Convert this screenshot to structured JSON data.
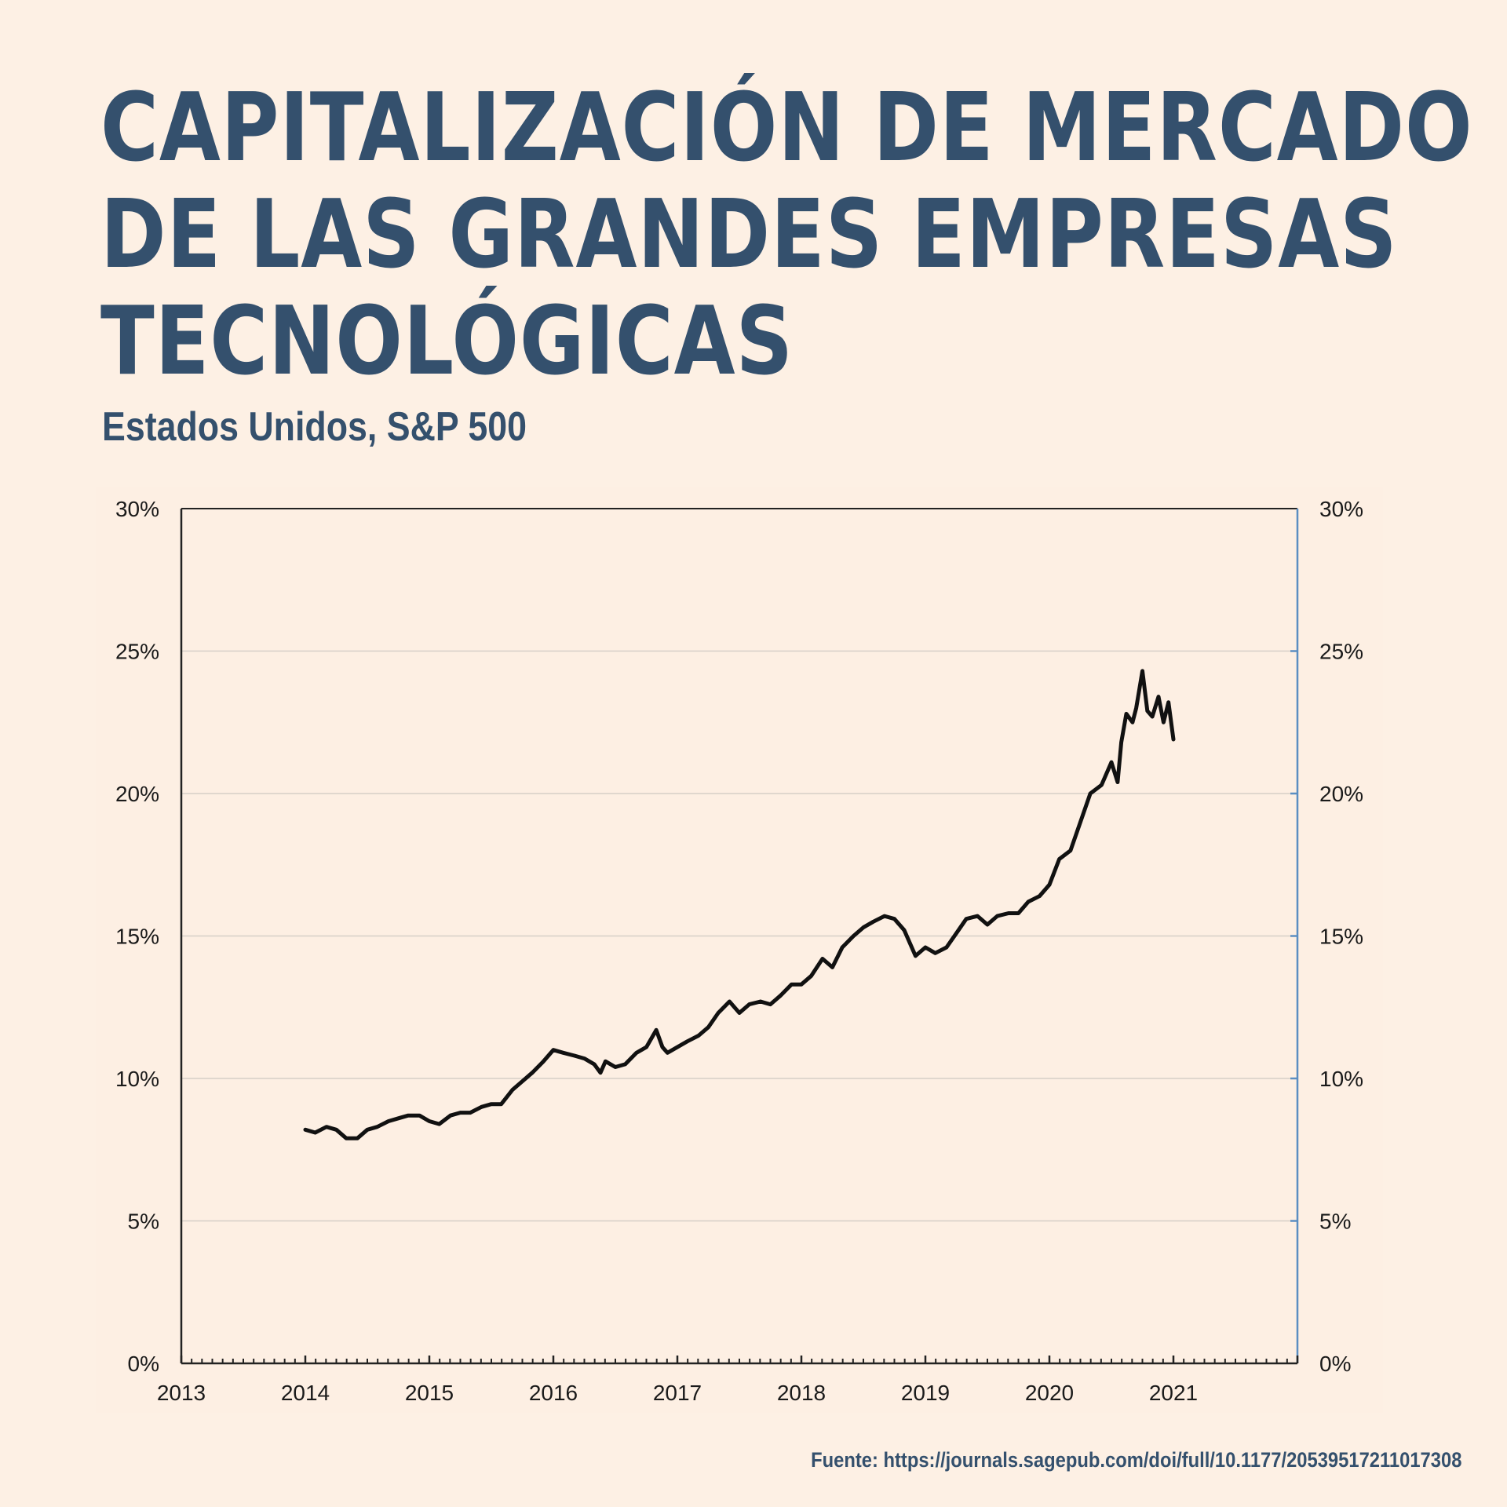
{
  "title_lines": [
    "CAPITALIZACIÓN DE MERCADO",
    "DE LAS GRANDES EMPRESAS",
    "TECNOLÓGICAS"
  ],
  "subtitle": "Estados Unidos, S&P 500",
  "source": "Fuente: https://journals.sagepub.com/doi/full/10.1177/20539517211017308",
  "colors": {
    "heading": "#34506d",
    "background": "#fdf0e4",
    "line": "#111111",
    "gridline": "#d6cfc8",
    "right_axis": "#5b8ec2"
  },
  "chart_data": {
    "type": "line",
    "title": "",
    "xlabel": "",
    "ylabel": "",
    "xlim": [
      2013,
      2022
    ],
    "ylim": [
      0,
      30
    ],
    "x_ticks": [
      "2013",
      "2014",
      "2015",
      "2016",
      "2017",
      "2018",
      "2019",
      "2020",
      "2021"
    ],
    "y_ticks": [
      "0%",
      "5%",
      "10%",
      "15%",
      "20%",
      "25%",
      "30%"
    ],
    "y_ticks_right": [
      "0%",
      "5%",
      "10%",
      "15%",
      "20%",
      "25%",
      "30%"
    ],
    "grid": true,
    "legend": "none",
    "series": [
      {
        "points": [
          [
            2014.0,
            8.2
          ],
          [
            2014.08,
            8.1
          ],
          [
            2014.17,
            8.3
          ],
          [
            2014.25,
            8.2
          ],
          [
            2014.33,
            7.9
          ],
          [
            2014.42,
            7.9
          ],
          [
            2014.5,
            8.2
          ],
          [
            2014.58,
            8.3
          ],
          [
            2014.67,
            8.5
          ],
          [
            2014.75,
            8.6
          ],
          [
            2014.83,
            8.7
          ],
          [
            2014.92,
            8.7
          ],
          [
            2015.0,
            8.5
          ],
          [
            2015.08,
            8.4
          ],
          [
            2015.17,
            8.7
          ],
          [
            2015.25,
            8.8
          ],
          [
            2015.33,
            8.8
          ],
          [
            2015.42,
            9.0
          ],
          [
            2015.5,
            9.1
          ],
          [
            2015.58,
            9.1
          ],
          [
            2015.67,
            9.6
          ],
          [
            2015.75,
            9.9
          ],
          [
            2015.83,
            10.2
          ],
          [
            2015.92,
            10.6
          ],
          [
            2016.0,
            11.0
          ],
          [
            2016.08,
            10.9
          ],
          [
            2016.17,
            10.8
          ],
          [
            2016.25,
            10.7
          ],
          [
            2016.33,
            10.5
          ],
          [
            2016.38,
            10.2
          ],
          [
            2016.42,
            10.6
          ],
          [
            2016.5,
            10.4
          ],
          [
            2016.58,
            10.5
          ],
          [
            2016.67,
            10.9
          ],
          [
            2016.75,
            11.1
          ],
          [
            2016.83,
            11.7
          ],
          [
            2016.88,
            11.1
          ],
          [
            2016.92,
            10.9
          ],
          [
            2017.0,
            11.1
          ],
          [
            2017.08,
            11.3
          ],
          [
            2017.17,
            11.5
          ],
          [
            2017.25,
            11.8
          ],
          [
            2017.33,
            12.3
          ],
          [
            2017.42,
            12.7
          ],
          [
            2017.5,
            12.3
          ],
          [
            2017.58,
            12.6
          ],
          [
            2017.67,
            12.7
          ],
          [
            2017.75,
            12.6
          ],
          [
            2017.83,
            12.9
          ],
          [
            2017.92,
            13.3
          ],
          [
            2018.0,
            13.3
          ],
          [
            2018.08,
            13.6
          ],
          [
            2018.17,
            14.2
          ],
          [
            2018.25,
            13.9
          ],
          [
            2018.33,
            14.6
          ],
          [
            2018.42,
            15.0
          ],
          [
            2018.5,
            15.3
          ],
          [
            2018.58,
            15.5
          ],
          [
            2018.67,
            15.7
          ],
          [
            2018.75,
            15.6
          ],
          [
            2018.83,
            15.2
          ],
          [
            2018.92,
            14.3
          ],
          [
            2019.0,
            14.6
          ],
          [
            2019.08,
            14.4
          ],
          [
            2019.17,
            14.6
          ],
          [
            2019.25,
            15.1
          ],
          [
            2019.33,
            15.6
          ],
          [
            2019.42,
            15.7
          ],
          [
            2019.5,
            15.4
          ],
          [
            2019.58,
            15.7
          ],
          [
            2019.67,
            15.8
          ],
          [
            2019.75,
            15.8
          ],
          [
            2019.83,
            16.2
          ],
          [
            2019.92,
            16.4
          ],
          [
            2020.0,
            16.8
          ],
          [
            2020.08,
            17.7
          ],
          [
            2020.17,
            18.0
          ],
          [
            2020.25,
            19.0
          ],
          [
            2020.33,
            20.0
          ],
          [
            2020.42,
            20.3
          ],
          [
            2020.5,
            21.1
          ],
          [
            2020.55,
            20.4
          ],
          [
            2020.58,
            21.8
          ],
          [
            2020.62,
            22.8
          ],
          [
            2020.67,
            22.5
          ],
          [
            2020.7,
            23.0
          ],
          [
            2020.75,
            24.3
          ],
          [
            2020.79,
            22.9
          ],
          [
            2020.83,
            22.7
          ],
          [
            2020.88,
            23.4
          ],
          [
            2020.92,
            22.5
          ],
          [
            2020.96,
            23.2
          ],
          [
            2021.0,
            21.9
          ]
        ]
      }
    ]
  }
}
